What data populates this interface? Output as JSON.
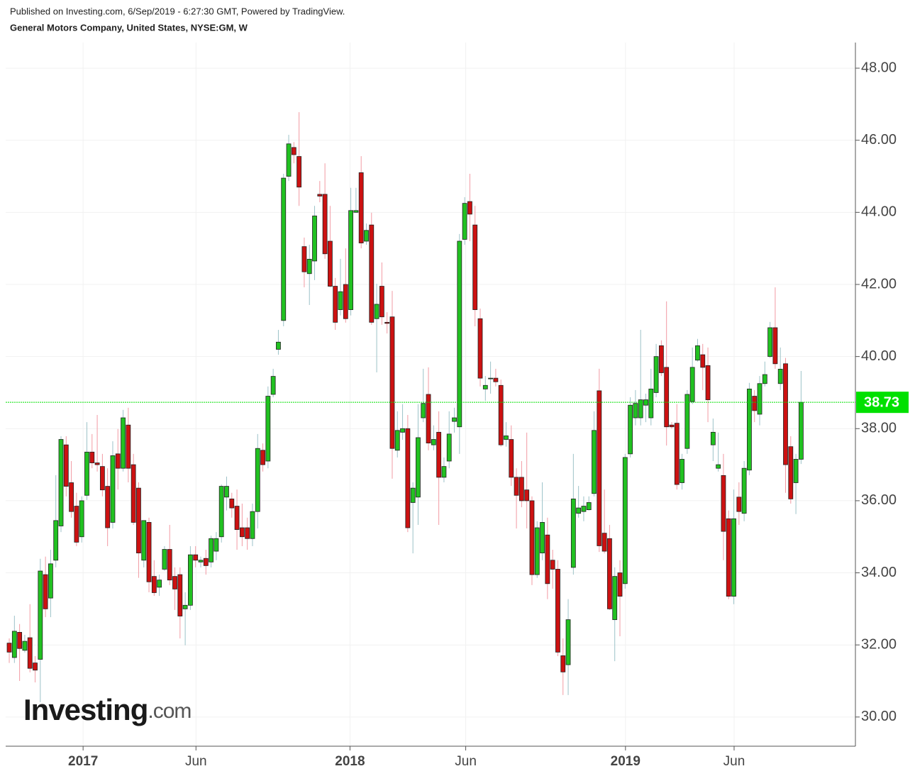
{
  "published": "Published on Investing.com, 6/Sep/2019 - 6:27:30 GMT, Powered by TradingView.",
  "logo": {
    "name": "Investing",
    "suffix": ".com"
  },
  "chart_data": {
    "type": "candlestick",
    "title": "General Motors Company, United States, NYSE:GM, W",
    "up_color": "#21c121",
    "down_color": "#cc1111",
    "up_wick": "#9cc2c8",
    "down_wick": "#f29aa3",
    "grid": true,
    "xlim": [
      -0.69,
      163.5
    ],
    "xticks": [
      {
        "value": 14.27,
        "label": "2017"
      },
      {
        "value": 36.08,
        "label": "Jun"
      },
      {
        "value": 65.84,
        "label": "2018"
      },
      {
        "value": 88.2,
        "label": "Jun"
      },
      {
        "value": 119.07,
        "label": "2019"
      },
      {
        "value": 140.06,
        "label": "Jun"
      }
    ],
    "ylim": [
      29.19,
      48.71
    ],
    "yticks": [
      {
        "value": 30,
        "label": "30.00"
      },
      {
        "value": 32,
        "label": "32.00"
      },
      {
        "value": 34,
        "label": "34.00"
      },
      {
        "value": 36,
        "label": "36.00"
      },
      {
        "value": 38,
        "label": "38.00"
      },
      {
        "value": 40,
        "label": "40.00"
      },
      {
        "value": 42,
        "label": "42.00"
      },
      {
        "value": 44,
        "label": "44.00"
      },
      {
        "value": 46,
        "label": "46.00"
      },
      {
        "value": 48,
        "label": "48.00"
      }
    ],
    "last_price": {
      "value": 38.73,
      "label": "38.73",
      "color": "#00e000"
    },
    "open": [
      32.05,
      31.65,
      32.35,
      31.85,
      32.2,
      31.5,
      31.6,
      33.95,
      33.3,
      34.35,
      35.3,
      37.55,
      36.5,
      35.85,
      35.0,
      36.15,
      37.35,
      37.05,
      36.95,
      36.4,
      35.4,
      37.3,
      36.9,
      38.1,
      37.0,
      36.35,
      34.35,
      35.4,
      33.9,
      33.6,
      34.1,
      34.65,
      33.9,
      33.95,
      33.0,
      33.1,
      34.5,
      34.3,
      34.4,
      34.3,
      34.6,
      35.0,
      36.1,
      36.05,
      35.85,
      35.25,
      35.25,
      34.95,
      35.7,
      37.4,
      37.1,
      38.95,
      40.2,
      41.0,
      45.0,
      45.8,
      45.55,
      43.05,
      42.3,
      42.65,
      44.5,
      44.5,
      43.2,
      41.95,
      41.3,
      42.0,
      41.3,
      44.0,
      45.1,
      43.2,
      43.65,
      41.05,
      41.95,
      40.95,
      41.1,
      37.4,
      37.9,
      38.0,
      35.95,
      36.1,
      38.3,
      38.95,
      37.55,
      37.9,
      36.65,
      37.1,
      38.2,
      38.05,
      43.25,
      44.3,
      43.65,
      41.05,
      39.1,
      39.4,
      39.4,
      39.2,
      37.7,
      37.7,
      36.65,
      36.65,
      36.3,
      36.0,
      33.95,
      34.55,
      35.05,
      34.35,
      34.1,
      31.7,
      31.45,
      34.15,
      35.65,
      35.7,
      35.75,
      36.2,
      39.05,
      35.1,
      34.95,
      32.7,
      34.0,
      33.7,
      37.3,
      38.3,
      38.3,
      38.65,
      38.3,
      39.0,
      40.3,
      39.7,
      38.1,
      38.15,
      36.5,
      37.45,
      38.75,
      39.9,
      40.05,
      39.75,
      37.55,
      36.9,
      36.7,
      35.5,
      33.35,
      36.1,
      35.65,
      36.85,
      38.9,
      38.4,
      39.25,
      40.0,
      40.8,
      39.25,
      39.8,
      37.5,
      36.5,
      37.15
    ],
    "high": [
      32.18,
      32.81,
      32.58,
      32.28,
      33.13,
      31.69,
      34.39,
      34.45,
      34.64,
      36.71,
      37.79,
      37.79,
      37.1,
      36.22,
      36.12,
      38.18,
      37.85,
      38.38,
      37.3,
      36.9,
      37.65,
      37.99,
      38.52,
      38.58,
      37.3,
      36.51,
      35.43,
      35.53,
      34.35,
      33.95,
      34.74,
      35.33,
      34.15,
      34.15,
      33.46,
      34.74,
      34.74,
      34.45,
      34.64,
      35.03,
      35.13,
      36.45,
      36.67,
      36.22,
      36.31,
      35.92,
      35.53,
      35.92,
      37.85,
      37.59,
      39.17,
      39.66,
      40.74,
      45.07,
      46.15,
      45.95,
      46.78,
      43.3,
      43.1,
      44.18,
      44.87,
      45.36,
      44.18,
      42.18,
      42.71,
      43.0,
      44.68,
      44.68,
      45.56,
      43.69,
      43.99,
      42.02,
      42.61,
      41.23,
      41.82,
      38.48,
      38.68,
      38.38,
      36.51,
      38.68,
      39.66,
      39.7,
      38.09,
      38.48,
      37.2,
      38.48,
      38.58,
      43.4,
      44.42,
      45.07,
      44.18,
      41.33,
      39.46,
      39.86,
      39.66,
      39.36,
      38.18,
      38.09,
      36.9,
      37.1,
      37.89,
      36.12,
      35.43,
      36.51,
      35.53,
      34.64,
      34.35,
      32.18,
      33.27,
      37.3,
      36.41,
      36.12,
      36.12,
      38.48,
      39.66,
      36.31,
      35.33,
      34.15,
      34.35,
      37.3,
      38.87,
      39.07,
      40.74,
      38.97,
      39.66,
      40.35,
      40.45,
      41.53,
      38.18,
      38.68,
      37.3,
      39.07,
      40.25,
      40.49,
      40.35,
      40.25,
      38.28,
      37.89,
      37.3,
      35.73,
      36.31,
      36.51,
      37.1,
      39.27,
      39.07,
      39.46,
      39.86,
      40.96,
      41.92,
      40.25,
      39.96,
      37.79,
      37.3,
      39.6
    ],
    "low": [
      31.5,
      31.5,
      31.0,
      31.79,
      31.24,
      30.96,
      30.41,
      32.77,
      32.77,
      34.15,
      35.13,
      36.12,
      35.53,
      34.74,
      34.84,
      36.02,
      36.9,
      36.81,
      36.12,
      34.74,
      35.23,
      36.31,
      36.81,
      36.51,
      35.33,
      33.86,
      34.15,
      33.46,
      33.36,
      33.36,
      34.05,
      33.66,
      32.97,
      32.18,
      31.99,
      32.97,
      34.15,
      34.15,
      33.95,
      34.15,
      34.35,
      34.84,
      35.73,
      35.53,
      34.64,
      34.74,
      34.64,
      34.74,
      35.23,
      36.81,
      36.9,
      38.87,
      40.05,
      40.84,
      44.87,
      45.36,
      44.18,
      41.92,
      41.43,
      42.12,
      44.28,
      42.71,
      41.92,
      40.74,
      41.14,
      40.94,
      41.14,
      43.99,
      43.0,
      43.1,
      40.88,
      39.56,
      40.88,
      40.64,
      36.61,
      37.2,
      37.69,
      35.13,
      34.54,
      35.33,
      38.18,
      37.4,
      37.4,
      35.33,
      36.51,
      36.9,
      37.89,
      37.3,
      43.1,
      43.2,
      40.84,
      39.17,
      38.77,
      38.97,
      39.17,
      37.5,
      37.5,
      36.41,
      35.23,
      35.82,
      35.23,
      33.66,
      33.86,
      34.35,
      33.27,
      33.56,
      31.69,
      30.61,
      30.61,
      33.95,
      35.53,
      35.43,
      35.73,
      36.12,
      34.58,
      34.54,
      32.97,
      31.55,
      32.24,
      33.56,
      37.2,
      38.09,
      38.09,
      38.18,
      38.09,
      38.87,
      39.46,
      37.53,
      38.0,
      36.31,
      36.31,
      37.3,
      38.68,
      39.86,
      39.07,
      38.18,
      37.1,
      36.81,
      34.35,
      33.27,
      33.13,
      35.33,
      35.43,
      36.71,
      38.18,
      38.09,
      39.17,
      39.96,
      39.66,
      39.07,
      36.22,
      35.92,
      35.63,
      37.02
    ],
    "close": [
      31.8,
      32.38,
      31.9,
      32.1,
      31.35,
      31.3,
      34.05,
      33.0,
      34.25,
      35.45,
      37.7,
      36.4,
      35.7,
      34.85,
      36.0,
      37.35,
      37.05,
      37.0,
      36.3,
      35.25,
      37.25,
      36.9,
      38.3,
      36.9,
      35.4,
      34.55,
      35.45,
      33.75,
      33.45,
      33.8,
      34.65,
      33.8,
      33.55,
      32.8,
      33.1,
      34.5,
      34.35,
      34.35,
      34.2,
      34.95,
      34.95,
      36.4,
      36.4,
      35.8,
      35.2,
      35.0,
      34.95,
      35.7,
      37.45,
      37.0,
      38.9,
      39.45,
      40.4,
      44.95,
      45.9,
      45.6,
      44.7,
      42.35,
      42.7,
      43.9,
      44.45,
      42.85,
      41.95,
      40.95,
      41.8,
      41.05,
      44.05,
      44.05,
      43.15,
      43.5,
      40.95,
      41.45,
      41.1,
      40.92,
      37.45,
      37.95,
      38.0,
      35.25,
      36.35,
      37.75,
      38.7,
      37.6,
      37.7,
      36.65,
      36.95,
      37.85,
      38.3,
      43.2,
      44.25,
      43.95,
      41.3,
      39.4,
      39.2,
      39.4,
      39.3,
      37.55,
      37.8,
      36.65,
      36.15,
      36.0,
      36.0,
      33.95,
      35.25,
      35.4,
      33.7,
      34.1,
      31.8,
      31.25,
      32.7,
      36.05,
      35.8,
      35.85,
      35.95,
      37.95,
      34.75,
      34.6,
      33.0,
      33.9,
      33.35,
      37.2,
      38.65,
      38.7,
      38.8,
      38.8,
      39.1,
      40.0,
      39.55,
      38.05,
      38.05,
      36.45,
      37.15,
      38.95,
      39.7,
      40.3,
      39.7,
      38.8,
      37.9,
      37.0,
      35.15,
      33.35,
      35.5,
      35.7,
      36.9,
      39.1,
      38.5,
      39.25,
      39.5,
      40.8,
      39.8,
      39.65,
      37.0,
      36.05,
      37.15,
      38.73
    ]
  }
}
